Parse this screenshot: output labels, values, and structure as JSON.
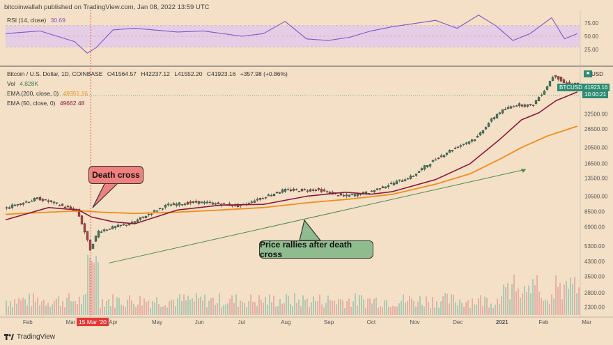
{
  "header": {
    "published": "bitcoinwallah published on TradingView.com, Jan 08, 2022 13:59 UTC"
  },
  "rsi_legend": {
    "label": "RSI (14, close)",
    "value": "30.69"
  },
  "price_legend": {
    "title": "Bitcoin / U.S. Dollar, 1D, COINBASE",
    "o": "O41564.57",
    "h": "H42237.12",
    "l": "L41552.20",
    "c": "C41923.16",
    "change": "+357.98 (+0.86%)"
  },
  "vol_legend": {
    "label": "Vol",
    "value": "4.828K"
  },
  "ema200_legend": {
    "label": "EMA (200, close, 0)",
    "value": "49351.16"
  },
  "ema50_legend": {
    "label": "EMA (50, close, 0)",
    "value": "49662.48"
  },
  "callouts": {
    "death_cross": "Death cross",
    "rally": "Price rallies after death cross"
  },
  "tags": {
    "symbol": "BTCUSD",
    "last_price": "41923.16",
    "countdown": "10:00:21",
    "currency": "USD",
    "date_marker": "15 Mar '20"
  },
  "footer": {
    "brand": "TradingView"
  },
  "colors": {
    "background": "#f3e0c6",
    "rsi_band": "#e6cde6",
    "rsi_line": "#7e57c2",
    "ema200": "#f28c1e",
    "ema50": "#8b1a3a",
    "up": "#3e7d5f",
    "down": "#a94343",
    "callout_red": "#f08080",
    "callout_green": "#8fbc8f",
    "trend": "#4e8a4e",
    "tag_teal": "#2e8b72",
    "marker_red": "#e53935"
  },
  "chart_data": {
    "type": "line",
    "title": "Bitcoin / U.S. Dollar, 1D, COINBASE",
    "x_ticks": [
      "Feb",
      "Mar",
      "Apr",
      "May",
      "Jun",
      "Jul",
      "Aug",
      "Sep",
      "Oct",
      "Nov",
      "Dec",
      "2021",
      "Feb",
      "Mar"
    ],
    "y_ticks": [
      2300,
      2800,
      3500,
      4300,
      5300,
      6900,
      8500,
      10500,
      13500,
      16500,
      20500,
      26500,
      32500
    ],
    "y_scale": "log",
    "ylim": [
      2000,
      62000
    ],
    "rsi_ticks": [
      75,
      50,
      25
    ],
    "rsi_range": [
      0,
      100
    ],
    "rsi_band": [
      30,
      70
    ],
    "series": [
      {
        "name": "Bitcoin price (close)",
        "t": [
          0,
          0.8,
          1.7,
          2,
          2.2,
          2.5,
          3,
          3.8,
          4.5,
          5.5,
          6.5,
          7.3,
          7.9,
          8.2,
          8.5,
          9.5,
          10.3,
          11,
          11.5,
          11.9,
          12.3,
          12.6,
          12.8,
          13,
          13.3
        ],
        "values": [
          8900,
          10200,
          8600,
          5000,
          6500,
          6800,
          7300,
          9300,
          9700,
          9200,
          11400,
          11500,
          10500,
          10800,
          11100,
          13800,
          19200,
          23500,
          33000,
          37000,
          36500,
          46000,
          56000,
          50000,
          49000
        ]
      },
      {
        "name": "EMA (200, close, 0)",
        "t": [
          0,
          1,
          1.8,
          2.2,
          3,
          4,
          5,
          6,
          7,
          8,
          9,
          10,
          10.8,
          11.5,
          12,
          12.6,
          13.3
        ],
        "values": [
          8200,
          8450,
          8600,
          8450,
          8300,
          8450,
          8700,
          9000,
          9600,
          10100,
          10800,
          12400,
          14300,
          17500,
          20500,
          24000,
          27500
        ]
      },
      {
        "name": "EMA (50, close, 0)",
        "t": [
          0,
          1,
          1.7,
          2,
          2.5,
          3,
          4,
          5,
          6,
          7,
          7.9,
          8.5,
          9,
          10,
          10.8,
          11.5,
          12,
          12.4,
          12.8,
          13.3
        ],
        "values": [
          7600,
          9000,
          8700,
          7900,
          7400,
          7200,
          8700,
          9300,
          9400,
          10500,
          11100,
          10800,
          11200,
          13200,
          16400,
          23000,
          30000,
          33000,
          39000,
          44000
        ]
      },
      {
        "name": "RSI (14, close)",
        "t": [
          0,
          0.8,
          1.6,
          1.9,
          2.1,
          2.5,
          3,
          4,
          4.6,
          5.5,
          6,
          6.5,
          7,
          7.5,
          8,
          8.5,
          9,
          9.5,
          10,
          10.5,
          11,
          11.4,
          11.8,
          12.2,
          12.7,
          13,
          13.3
        ],
        "values": [
          55,
          60,
          40,
          18,
          28,
          62,
          65,
          58,
          60,
          50,
          55,
          78,
          45,
          42,
          48,
          60,
          68,
          74,
          80,
          65,
          90,
          70,
          42,
          55,
          85,
          45,
          55
        ]
      }
    ],
    "volume": {
      "description": "daily volume bars; spike near 15 Mar '20"
    },
    "annotations": [
      "Death cross",
      "Price rallies after death cross",
      "15 Mar '20"
    ]
  }
}
